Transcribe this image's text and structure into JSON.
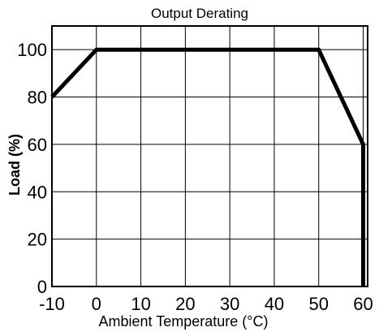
{
  "chart_data": {
    "type": "line",
    "title": "Output Derating",
    "xlabel": "Ambient Temperature (°C)",
    "ylabel": "Load (%)",
    "x_ticks": [
      -10,
      0,
      10,
      20,
      30,
      40,
      50,
      60
    ],
    "y_ticks": [
      0,
      20,
      40,
      60,
      80,
      100
    ],
    "xlim": [
      -10,
      61
    ],
    "ylim": [
      0,
      110
    ],
    "grid": true,
    "legend": "none",
    "series": [
      {
        "x": [
          -10,
          0,
          50,
          60,
          60
        ],
        "y": [
          80,
          100,
          100,
          60,
          0
        ]
      }
    ]
  },
  "colors": {
    "line": "#000000",
    "grid": "#000000",
    "background": "#ffffff"
  }
}
